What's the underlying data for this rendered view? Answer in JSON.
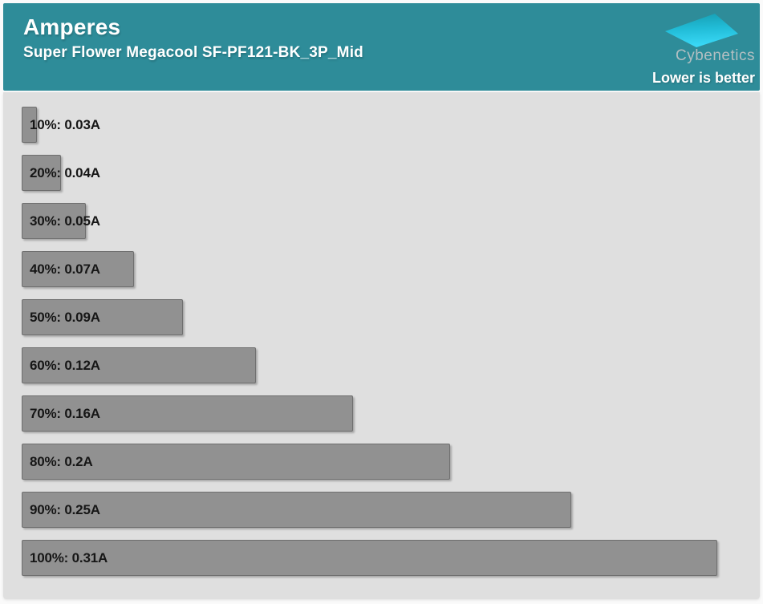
{
  "header": {
    "title": "Amperes",
    "subtitle": "Super Flower Megacool SF-PF121-BK_3P_Mid",
    "brand": "Cybenetics",
    "note": "Lower is better"
  },
  "colors": {
    "header_bg": "#2e8c99",
    "plot_bg": "#dfdfdf",
    "bar_fill": "#919191",
    "bar_border": "#6f6f6f",
    "label_color": "#161616",
    "wordmark_color": "#b3bfc2",
    "logo_gradient_top": "#17a0b5",
    "logo_gradient_bottom": "#3cdbf9"
  },
  "chart_data": {
    "type": "bar",
    "orientation": "horizontal",
    "title": "Amperes",
    "subtitle": "Super Flower Megacool SF-PF121-BK_3P_Mid",
    "note": "Lower is better",
    "unit": "A",
    "categories": [
      "10%",
      "20%",
      "30%",
      "40%",
      "50%",
      "60%",
      "70%",
      "80%",
      "90%",
      "100%"
    ],
    "values": [
      0.03,
      0.04,
      0.05,
      0.07,
      0.09,
      0.12,
      0.16,
      0.2,
      0.25,
      0.31
    ],
    "labels": [
      "10%: 0.03A",
      "20%: 0.04A",
      "30%: 0.05A",
      "40%: 0.07A",
      "50%: 0.09A",
      "60%: 0.12A",
      "70%: 0.16A",
      "80%: 0.2A",
      "90%: 0.25A",
      "100%: 0.31A"
    ],
    "xlim": [
      0.0237,
      0.31
    ],
    "grid": false,
    "legend": "none"
  }
}
